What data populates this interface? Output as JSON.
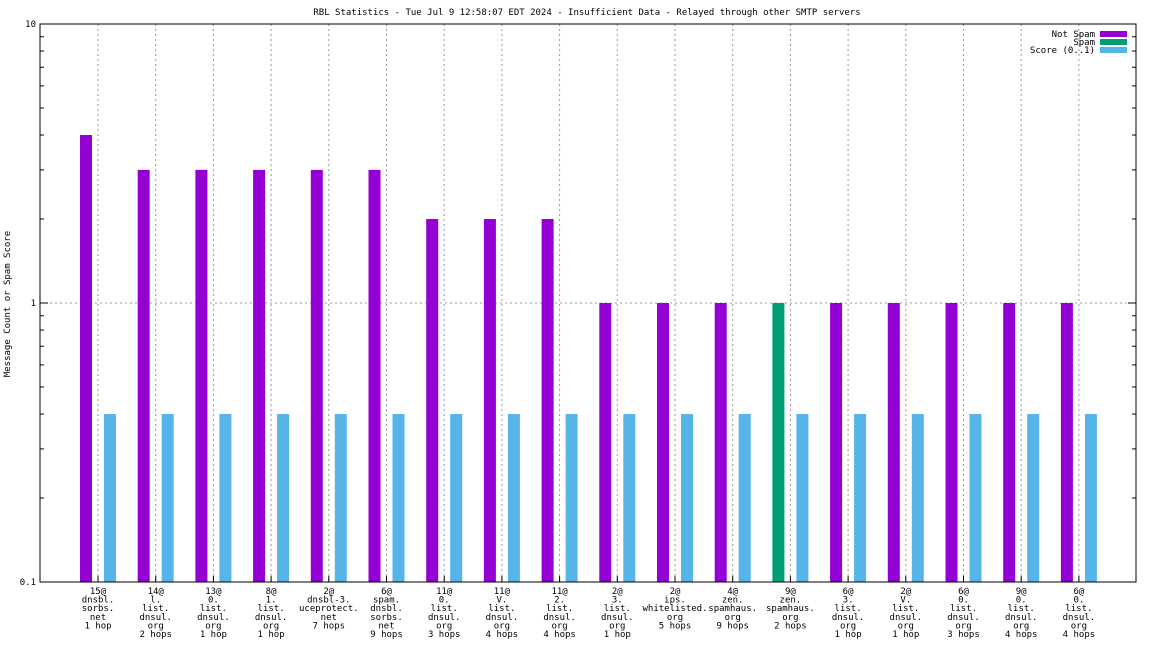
{
  "chart_data": {
    "type": "bar",
    "title": "RBL Statistics - Tue Jul  9 12:58:07 EDT 2024 - Insufficient Data - Relayed through other SMTP servers",
    "xlabel": "",
    "ylabel": "Message Count or Spam Score",
    "yscale": "log",
    "ylim": [
      0.1,
      10
    ],
    "yticks": [
      {
        "value": 10,
        "label": "10"
      },
      {
        "value": 1,
        "label": "1"
      },
      {
        "value": 0.1,
        "label": "0.1"
      }
    ],
    "grid": true,
    "legend_position": "top-right",
    "categories": [
      [
        "15@",
        "dnsbl.",
        "sorbs.",
        "net",
        "1 hop"
      ],
      [
        "14@",
        "l.",
        "list.",
        "dnsul.",
        "org",
        "2 hops"
      ],
      [
        "13@",
        "0.",
        "list.",
        "dnsul.",
        "org",
        "1 hop"
      ],
      [
        "8@",
        "1.",
        "list.",
        "dnsul.",
        "org",
        "1 hop"
      ],
      [
        "2@",
        "dnsbl-3.",
        "uceprotect.",
        "net",
        "7 hops"
      ],
      [
        "6@",
        "spam.",
        "dnsbl.",
        "sorbs.",
        "net",
        "9 hops"
      ],
      [
        "11@",
        "0.",
        "list.",
        "dnsul.",
        "org",
        "3 hops"
      ],
      [
        "11@",
        "V.",
        "list.",
        "dnsul.",
        "org",
        "4 hops"
      ],
      [
        "11@",
        "2.",
        "list.",
        "dnsul.",
        "org",
        "4 hops"
      ],
      [
        "2@",
        "3.",
        "list.",
        "dnsul.",
        "org",
        "1 hop"
      ],
      [
        "2@",
        "ips.",
        "whitelisted.",
        "org",
        "5 hops"
      ],
      [
        "4@",
        "zen.",
        "spamhaus.",
        "org",
        "9 hops"
      ],
      [
        "9@",
        "zen.",
        "spamhaus.",
        "org",
        "2 hops"
      ],
      [
        "6@",
        "3.",
        "list.",
        "dnsul.",
        "org",
        "1 hop"
      ],
      [
        "2@",
        "V.",
        "list.",
        "dnsul.",
        "org",
        "1 hop"
      ],
      [
        "6@",
        "0.",
        "list.",
        "dnsul.",
        "org",
        "3 hops"
      ],
      [
        "9@",
        "0.",
        "list.",
        "dnsul.",
        "org",
        "4 hops"
      ],
      [
        "6@",
        "0.",
        "list.",
        "dnsul.",
        "org",
        "4 hops"
      ]
    ],
    "series": [
      {
        "name": "Not Spam",
        "color": "#9400d3",
        "values": [
          4,
          3,
          3,
          3,
          3,
          3,
          2,
          2,
          2,
          1,
          1,
          1,
          0,
          1,
          1,
          1,
          1,
          1
        ]
      },
      {
        "name": "Spam",
        "color": "#009e73",
        "values": [
          0,
          0,
          0,
          0,
          0,
          0,
          0,
          0,
          0,
          0,
          0,
          0,
          1,
          0,
          0,
          0,
          0,
          0
        ]
      },
      {
        "name": "Score (0..1)",
        "color": "#56b4e9",
        "values": [
          0.4,
          0.4,
          0.4,
          0.4,
          0.4,
          0.4,
          0.4,
          0.4,
          0.4,
          0.4,
          0.4,
          0.4,
          0.4,
          0.4,
          0.4,
          0.4,
          0.4,
          0.4
        ]
      }
    ]
  }
}
